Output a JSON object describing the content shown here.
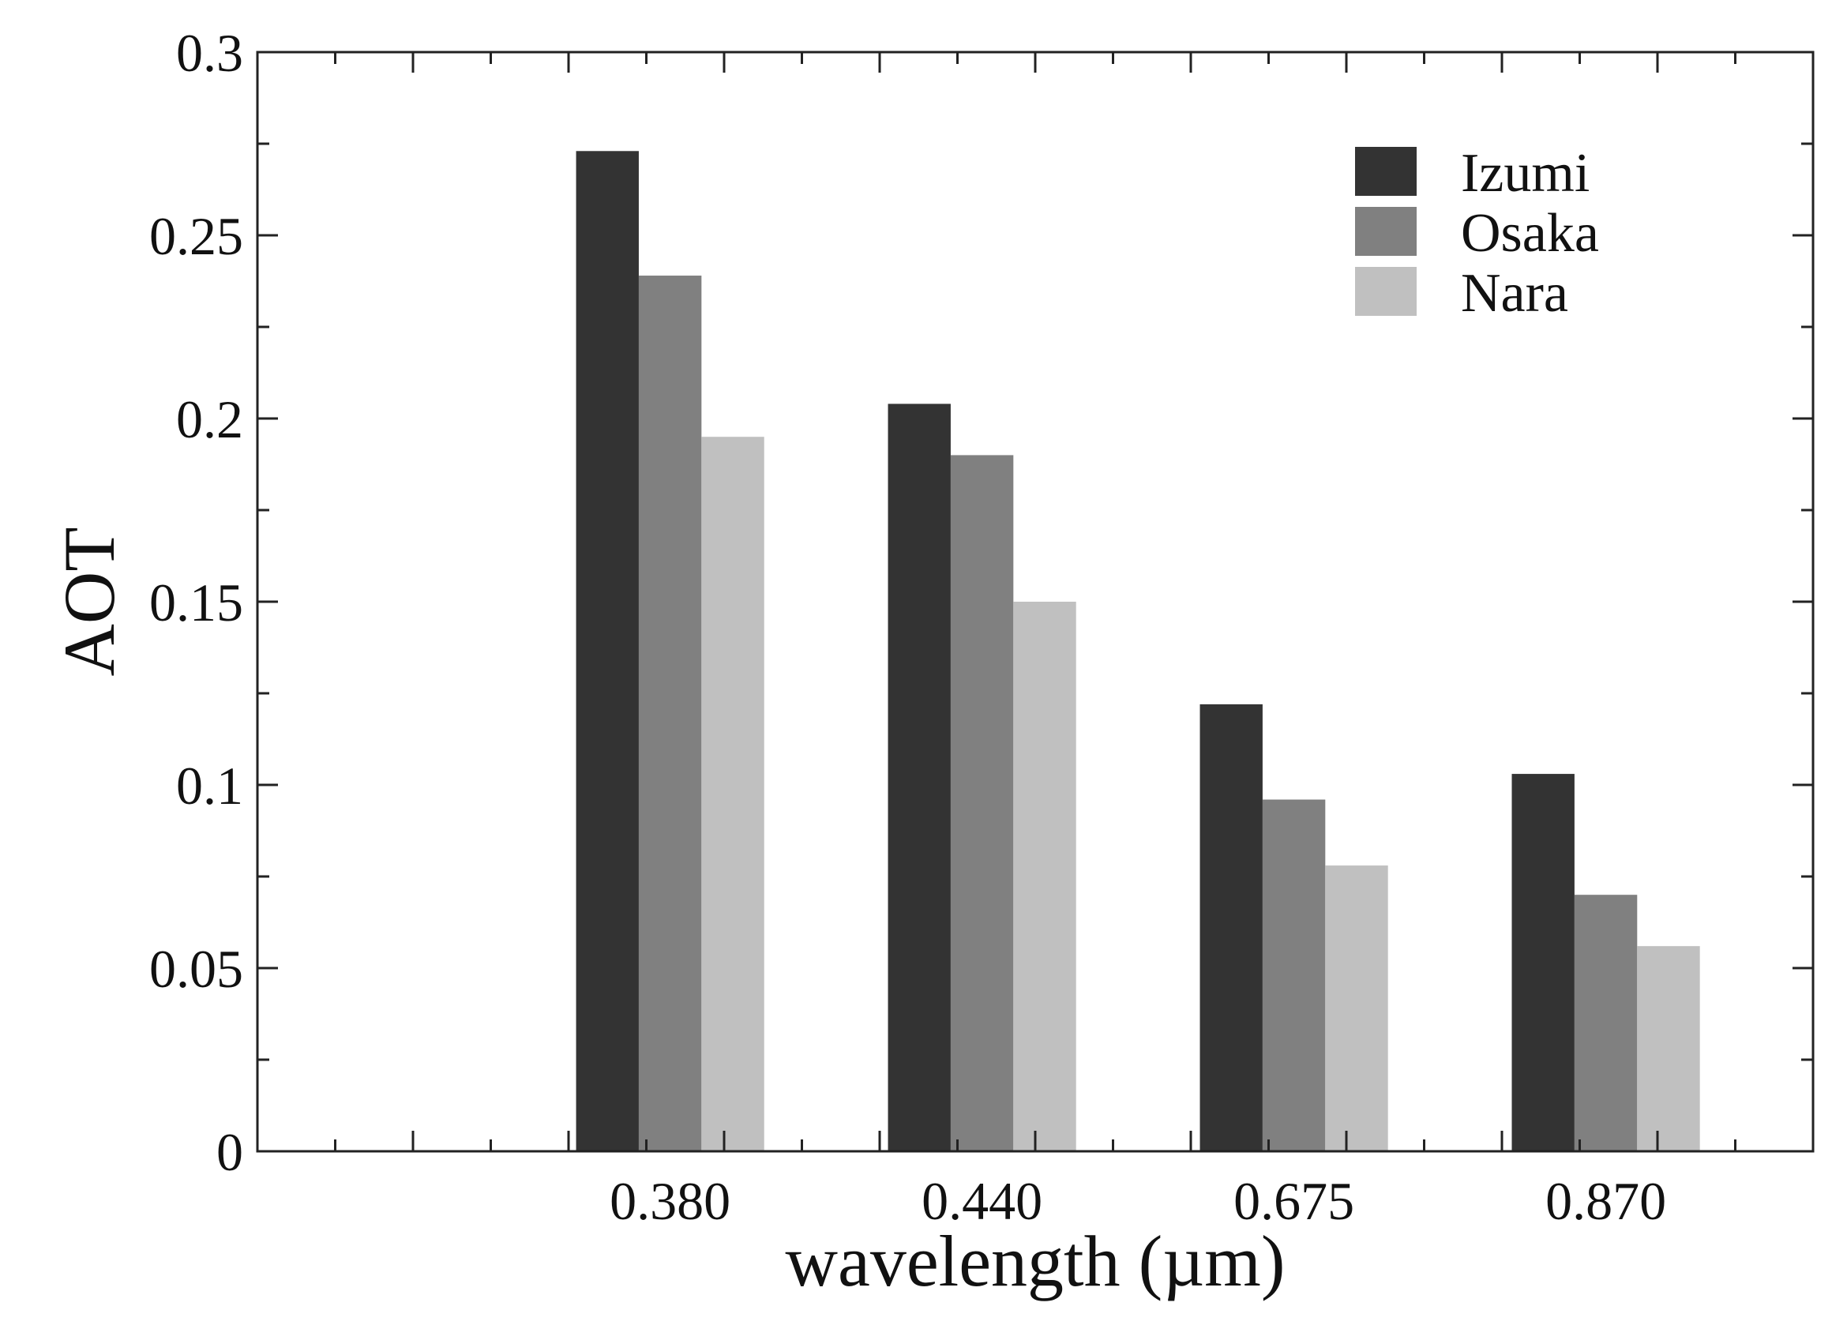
{
  "chart_data": {
    "type": "bar",
    "title": "",
    "xlabel": "wavelength (µm)",
    "ylabel": "AOT",
    "categories": [
      "0.380",
      "0.440",
      "0.675",
      "0.870"
    ],
    "series": [
      {
        "name": "Izumi",
        "color": "#333333",
        "values": [
          0.273,
          0.204,
          0.122,
          0.103
        ]
      },
      {
        "name": "Osaka",
        "color": "#808080",
        "values": [
          0.239,
          0.19,
          0.096,
          0.07
        ]
      },
      {
        "name": "Nara",
        "color": "#c0c0c0",
        "values": [
          0.195,
          0.15,
          0.078,
          0.056
        ]
      }
    ],
    "ylim": [
      0,
      0.3
    ],
    "yticks": [
      "0",
      "0.05",
      "0.1",
      "0.15",
      "0.2",
      "0.25",
      "0.3"
    ],
    "ytick_values": [
      0,
      0.05,
      0.1,
      0.15,
      0.2,
      0.25,
      0.3
    ],
    "grid": false,
    "legend_position": "top-right"
  }
}
